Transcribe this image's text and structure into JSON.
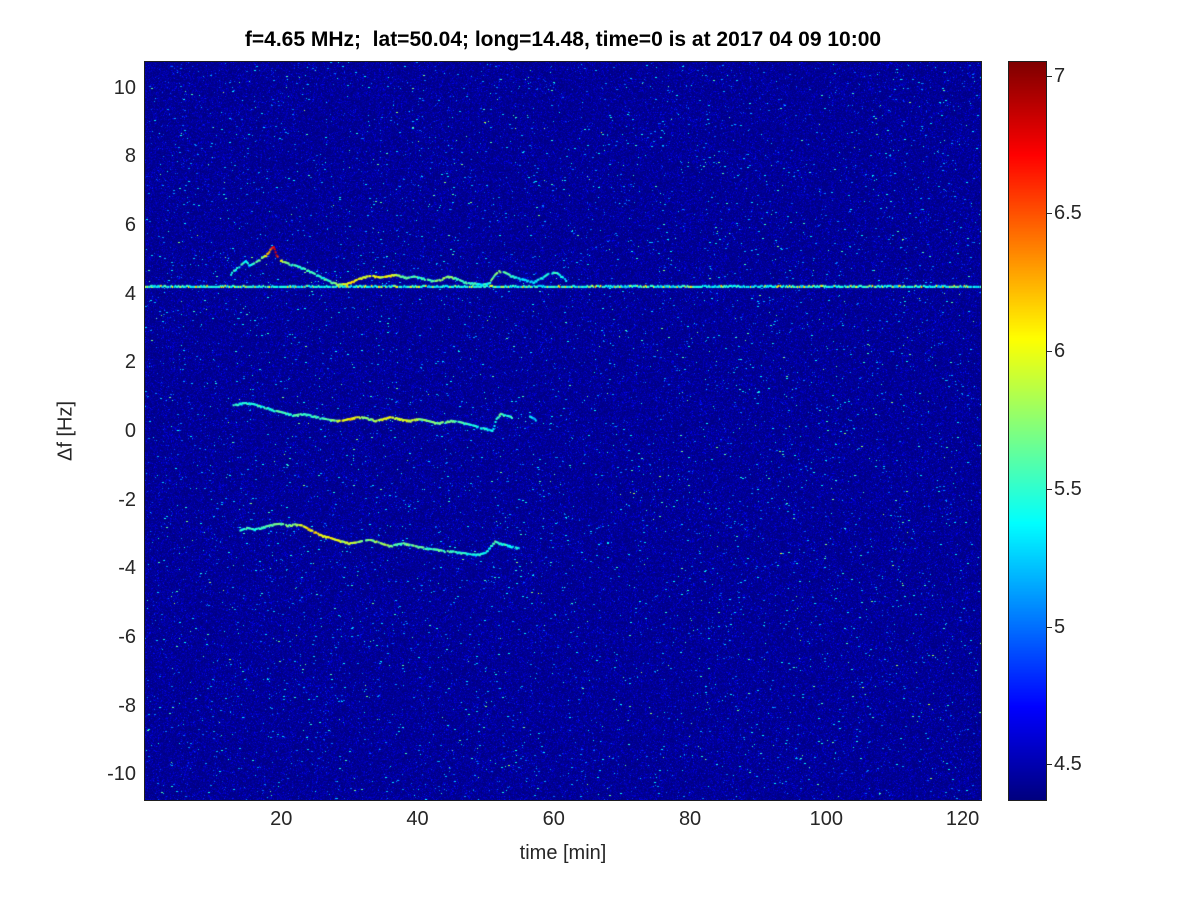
{
  "chart_data": {
    "type": "heatmap",
    "title": "f=4.65 MHz;  lat=50.04; long=14.48, time=0 is at 2017 04 09 10:00",
    "xlabel": "time [min]",
    "ylabel": "Δf [Hz]",
    "xlim": [
      0,
      122.7
    ],
    "ylim": [
      -10.75,
      10.75
    ],
    "xticks": [
      20,
      40,
      60,
      80,
      100,
      120
    ],
    "yticks": [
      10,
      8,
      6,
      4,
      2,
      0,
      -2,
      -4,
      -6,
      -8,
      -10
    ],
    "grid": false,
    "legend": null,
    "colorbar": {
      "position": "right",
      "colormap": "jet",
      "min": 4.37,
      "max": 7.05,
      "ticks": [
        7,
        6.5,
        6,
        5.5,
        5,
        4.5
      ]
    },
    "background_value": 4.37,
    "noise": {
      "mean_excess": 0.07,
      "spike_prob": 0.018,
      "seed": 1337
    },
    "carrier_line": {
      "df": 4.2,
      "t_start": 0,
      "t_end": 122.7,
      "base_value": 5.3,
      "bright_value": 6.05
    },
    "series": [
      {
        "name": "upper-doppler-trace",
        "points": [
          [
            12.5,
            4.55,
            5.4
          ],
          [
            13.2,
            4.7,
            5.5
          ],
          [
            14,
            4.82,
            5.5
          ],
          [
            14.8,
            4.95,
            5.4
          ],
          [
            15.4,
            4.82,
            5.4
          ],
          [
            16.2,
            4.9,
            5.5
          ],
          [
            17,
            5.02,
            5.6
          ],
          [
            17.8,
            5.12,
            6.0
          ],
          [
            18.4,
            5.28,
            6.4
          ],
          [
            18.9,
            5.38,
            6.7
          ],
          [
            19.3,
            5.12,
            6.8
          ],
          [
            19.8,
            5.0,
            6.2
          ],
          [
            20.5,
            4.92,
            5.7
          ],
          [
            21.5,
            4.85,
            5.6
          ],
          [
            22.5,
            4.8,
            5.5
          ],
          [
            23.5,
            4.72,
            5.6
          ],
          [
            24.5,
            4.62,
            5.5
          ],
          [
            25.5,
            4.52,
            5.4
          ],
          [
            26.5,
            4.42,
            5.5
          ],
          [
            27.5,
            4.33,
            5.6
          ],
          [
            28.5,
            4.27,
            5.8
          ],
          [
            29.5,
            4.28,
            6.0
          ],
          [
            30.5,
            4.35,
            6.1
          ],
          [
            31.5,
            4.44,
            6.0
          ],
          [
            32.5,
            4.5,
            5.9
          ],
          [
            33.5,
            4.52,
            6.0
          ],
          [
            34.5,
            4.47,
            5.9
          ],
          [
            35.5,
            4.5,
            6.1
          ],
          [
            36.5,
            4.55,
            5.9
          ],
          [
            37.5,
            4.52,
            5.7
          ],
          [
            38.5,
            4.46,
            5.6
          ],
          [
            39.5,
            4.5,
            5.6
          ],
          [
            40.5,
            4.46,
            5.5
          ],
          [
            41.5,
            4.41,
            5.5
          ],
          [
            42.5,
            4.36,
            5.6
          ],
          [
            43.5,
            4.42,
            5.7
          ],
          [
            44.5,
            4.5,
            5.8
          ],
          [
            45.5,
            4.46,
            5.6
          ],
          [
            46.5,
            4.37,
            5.5
          ],
          [
            47.5,
            4.31,
            5.6
          ],
          [
            48.5,
            4.3,
            5.5
          ],
          [
            49.5,
            4.26,
            5.4
          ],
          [
            50.5,
            4.3,
            5.5
          ],
          [
            51.4,
            4.55,
            5.7
          ],
          [
            52,
            4.66,
            5.8
          ],
          [
            52.8,
            4.62,
            5.6
          ],
          [
            53.8,
            4.52,
            5.5
          ],
          [
            54.8,
            4.45,
            5.4
          ],
          [
            55.8,
            4.4,
            5.3
          ],
          [
            57,
            4.34,
            5.3
          ],
          [
            58.5,
            4.48,
            5.4
          ],
          [
            59.5,
            4.62,
            5.5
          ],
          [
            60.5,
            4.6,
            5.5
          ],
          [
            61.5,
            4.45,
            5.4
          ],
          [
            62.3,
            4.32,
            5.3
          ]
        ]
      },
      {
        "name": "middle-doppler-trace",
        "points": [
          [
            13,
            0.75,
            5.4
          ],
          [
            14,
            0.8,
            5.5
          ],
          [
            15,
            0.82,
            5.5
          ],
          [
            16,
            0.78,
            5.4
          ],
          [
            17,
            0.72,
            5.5
          ],
          [
            18,
            0.67,
            5.5
          ],
          [
            19,
            0.6,
            5.5
          ],
          [
            20,
            0.55,
            5.6
          ],
          [
            21,
            0.5,
            5.5
          ],
          [
            22,
            0.45,
            5.5
          ],
          [
            23,
            0.5,
            5.6
          ],
          [
            24,
            0.47,
            5.5
          ],
          [
            25,
            0.42,
            5.5
          ],
          [
            26,
            0.37,
            5.5
          ],
          [
            27,
            0.33,
            5.6
          ],
          [
            28,
            0.3,
            5.8
          ],
          [
            29,
            0.3,
            6.0
          ],
          [
            30,
            0.35,
            6.1
          ],
          [
            31,
            0.4,
            6.0
          ],
          [
            32,
            0.4,
            5.8
          ],
          [
            33,
            0.35,
            5.7
          ],
          [
            34,
            0.3,
            5.8
          ],
          [
            35,
            0.35,
            6.0
          ],
          [
            36,
            0.4,
            6.0
          ],
          [
            37,
            0.37,
            5.9
          ],
          [
            38,
            0.32,
            6.0
          ],
          [
            39,
            0.3,
            5.9
          ],
          [
            40,
            0.35,
            5.8
          ],
          [
            41,
            0.32,
            5.7
          ],
          [
            42,
            0.27,
            5.6
          ],
          [
            43,
            0.22,
            5.7
          ],
          [
            44,
            0.27,
            5.7
          ],
          [
            45,
            0.3,
            5.6
          ],
          [
            46,
            0.27,
            5.6
          ],
          [
            47,
            0.22,
            5.5
          ],
          [
            48,
            0.17,
            5.5
          ],
          [
            49,
            0.12,
            5.4
          ],
          [
            50,
            0.07,
            5.4
          ],
          [
            51,
            0.0,
            5.3
          ],
          [
            51.6,
            0.35,
            5.5
          ],
          [
            52.2,
            0.5,
            5.6
          ],
          [
            53,
            0.45,
            5.5
          ],
          [
            54,
            0.4,
            5.4
          ],
          [
            56.5,
            0.42,
            5.3
          ],
          [
            57.5,
            0.32,
            5.3
          ]
        ]
      },
      {
        "name": "lower-doppler-trace",
        "points": [
          [
            14,
            -2.9,
            5.4
          ],
          [
            15,
            -2.82,
            5.5
          ],
          [
            16,
            -2.87,
            5.5
          ],
          [
            17,
            -2.82,
            5.5
          ],
          [
            18,
            -2.77,
            5.6
          ],
          [
            19,
            -2.72,
            5.6
          ],
          [
            20,
            -2.7,
            5.7
          ],
          [
            21,
            -2.75,
            5.7
          ],
          [
            22,
            -2.72,
            5.8
          ],
          [
            23,
            -2.75,
            6.0
          ],
          [
            24,
            -2.85,
            6.1
          ],
          [
            25,
            -2.95,
            6.1
          ],
          [
            26,
            -3.05,
            6.0
          ],
          [
            27,
            -3.1,
            6.1
          ],
          [
            28,
            -3.17,
            6.0
          ],
          [
            29,
            -3.22,
            5.9
          ],
          [
            30,
            -3.27,
            5.9
          ],
          [
            31,
            -3.25,
            5.8
          ],
          [
            32,
            -3.2,
            5.7
          ],
          [
            33,
            -3.17,
            5.7
          ],
          [
            34,
            -3.22,
            5.8
          ],
          [
            35,
            -3.3,
            5.8
          ],
          [
            36,
            -3.35,
            5.7
          ],
          [
            37,
            -3.3,
            5.6
          ],
          [
            38,
            -3.27,
            5.6
          ],
          [
            39,
            -3.32,
            5.7
          ],
          [
            40,
            -3.37,
            5.6
          ],
          [
            41,
            -3.4,
            5.6
          ],
          [
            42,
            -3.44,
            5.5
          ],
          [
            43,
            -3.46,
            5.6
          ],
          [
            44,
            -3.5,
            5.5
          ],
          [
            45,
            -3.5,
            5.6
          ],
          [
            46,
            -3.54,
            5.5
          ],
          [
            47,
            -3.56,
            5.5
          ],
          [
            48,
            -3.6,
            5.4
          ],
          [
            49,
            -3.6,
            5.4
          ],
          [
            50,
            -3.55,
            5.4
          ],
          [
            50.8,
            -3.35,
            5.5
          ],
          [
            51.4,
            -3.22,
            5.6
          ],
          [
            52,
            -3.27,
            5.5
          ],
          [
            53,
            -3.32,
            5.5
          ],
          [
            54,
            -3.37,
            5.4
          ],
          [
            55,
            -3.42,
            5.3
          ]
        ]
      }
    ]
  }
}
